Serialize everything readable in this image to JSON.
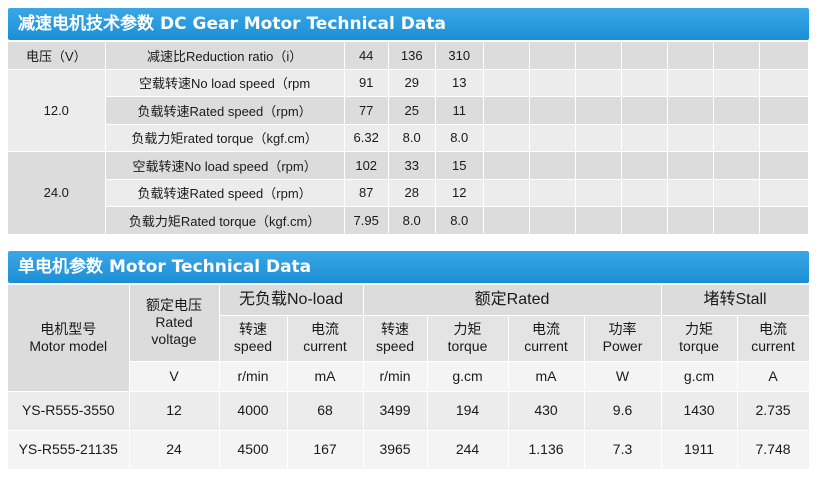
{
  "section1": {
    "title_cn": "减速电机技术参数",
    "title_en": "DC Gear Motor Technical Data",
    "header": {
      "voltage_label": "电压（V）",
      "ratio_label": "减速比Reduction ratio（i）",
      "ratios": [
        "44",
        "136",
        "310"
      ]
    },
    "groups": [
      {
        "voltage": "12.0",
        "rows": [
          {
            "label": "空载转速No load speed（rpm",
            "values": [
              "91",
              "29",
              "13"
            ]
          },
          {
            "label": "负载转速Rated speed（rpm）",
            "values": [
              "77",
              "25",
              "11"
            ]
          },
          {
            "label": "负载力矩rated torque（kgf.cm）",
            "values": [
              "6.32",
              "8.0",
              "8.0"
            ]
          }
        ]
      },
      {
        "voltage": "24.0",
        "rows": [
          {
            "label": "空载转速No load speed（rpm）",
            "values": [
              "102",
              "33",
              "15"
            ]
          },
          {
            "label": "负载转速Rated speed（rpm）",
            "values": [
              "87",
              "28",
              "12"
            ]
          },
          {
            "label": "负载力矩Rated torque（kgf.cm）",
            "values": [
              "7.95",
              "8.0",
              "8.0"
            ]
          }
        ]
      }
    ]
  },
  "section2": {
    "title_cn": "单电机参数",
    "title_en": "Motor Technical Data",
    "model_header_cn": "电机型号",
    "model_header_en": "Motor model",
    "voltage_header_cn": "额定电压",
    "voltage_header_en1": "Rated",
    "voltage_header_en2": "voltage",
    "noload_group": "无负载No-load",
    "rated_group": "额定Rated",
    "stall_group": "堵转Stall",
    "subheaders": [
      {
        "cn": "转速",
        "en": "speed"
      },
      {
        "cn": "电流",
        "en": "current"
      },
      {
        "cn": "转速",
        "en": "speed"
      },
      {
        "cn": "力矩",
        "en": "torque"
      },
      {
        "cn": "电流",
        "en": "current"
      },
      {
        "cn": "功率",
        "en": "Power"
      },
      {
        "cn": "力矩",
        "en": "torque"
      },
      {
        "cn": "电流",
        "en": "current"
      }
    ],
    "units": [
      "V",
      "r/min",
      "mA",
      "r/min",
      "g.cm",
      "mA",
      "W",
      "g.cm",
      "A"
    ],
    "rows": [
      {
        "model": "YS-R555-3550",
        "values": [
          "12",
          "4000",
          "68",
          "3499",
          "194",
          "430",
          "9.6",
          "1430",
          "2.735"
        ]
      },
      {
        "model": "YS-R555-21135",
        "values": [
          "24",
          "4500",
          "167",
          "3965",
          "244",
          "1.136",
          "7.3",
          "1911",
          "7.748"
        ]
      }
    ]
  }
}
